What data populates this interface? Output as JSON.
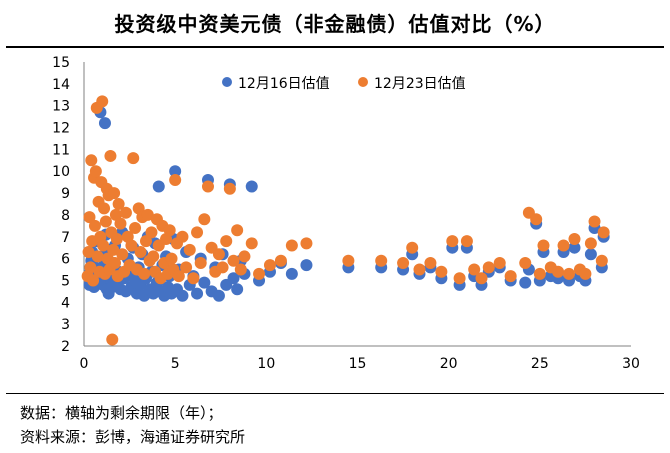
{
  "chart_data": {
    "type": "scatter",
    "title": "投资级中资美元债（非金融债）估值对比（%）",
    "xlabel": "",
    "ylabel": "",
    "xlim": [
      0,
      30
    ],
    "ylim": [
      2,
      15
    ],
    "xticks": [
      "0",
      "5",
      "10",
      "15",
      "20",
      "25",
      "30"
    ],
    "yticks": [
      "2",
      "3",
      "4",
      "5",
      "6",
      "7",
      "8",
      "9",
      "10",
      "11",
      "12",
      "13",
      "14",
      "15"
    ],
    "grid": false,
    "legend": "top",
    "series": [
      {
        "name": "12月16日估值",
        "color": "#4472C4",
        "points": [
          [
            0.3,
            4.8
          ],
          [
            0.35,
            5.4
          ],
          [
            0.4,
            5.9
          ],
          [
            0.45,
            6.3
          ],
          [
            0.5,
            5.1
          ],
          [
            0.55,
            4.7
          ],
          [
            0.6,
            5.6
          ],
          [
            0.7,
            6.8
          ],
          [
            0.75,
            5.0
          ],
          [
            0.8,
            4.9
          ],
          [
            0.85,
            5.3
          ],
          [
            0.9,
            12.7
          ],
          [
            1.0,
            6.1
          ],
          [
            1.05,
            4.8
          ],
          [
            1.1,
            5.7
          ],
          [
            1.15,
            12.2
          ],
          [
            1.2,
            7.1
          ],
          [
            1.25,
            4.6
          ],
          [
            1.3,
            5.2
          ],
          [
            1.35,
            4.4
          ],
          [
            1.4,
            6.4
          ],
          [
            1.5,
            5.0
          ],
          [
            1.55,
            4.7
          ],
          [
            1.6,
            5.8
          ],
          [
            1.7,
            6.6
          ],
          [
            1.8,
            4.9
          ],
          [
            1.9,
            5.4
          ],
          [
            2.0,
            4.6
          ],
          [
            2.1,
            7.2
          ],
          [
            2.2,
            5.1
          ],
          [
            2.3,
            4.5
          ],
          [
            2.4,
            6.0
          ],
          [
            2.5,
            5.3
          ],
          [
            2.6,
            4.7
          ],
          [
            2.7,
            6.5
          ],
          [
            2.8,
            5.0
          ],
          [
            2.9,
            4.4
          ],
          [
            3.0,
            5.6
          ],
          [
            3.1,
            4.8
          ],
          [
            3.2,
            6.2
          ],
          [
            3.3,
            4.3
          ],
          [
            3.4,
            5.1
          ],
          [
            3.5,
            7.0
          ],
          [
            3.6,
            4.6
          ],
          [
            3.7,
            5.4
          ],
          [
            3.8,
            4.4
          ],
          [
            3.9,
            6.7
          ],
          [
            4.0,
            4.9
          ],
          [
            4.1,
            9.3
          ],
          [
            4.2,
            4.5
          ],
          [
            4.3,
            5.7
          ],
          [
            4.4,
            4.3
          ],
          [
            4.5,
            6.1
          ],
          [
            4.6,
            4.7
          ],
          [
            4.7,
            5.2
          ],
          [
            4.8,
            4.4
          ],
          [
            4.9,
            6.9
          ],
          [
            5.0,
            10.0
          ],
          [
            5.1,
            4.6
          ],
          [
            5.2,
            5.5
          ],
          [
            5.4,
            4.3
          ],
          [
            5.6,
            6.3
          ],
          [
            5.8,
            4.8
          ],
          [
            6.0,
            5.2
          ],
          [
            6.2,
            4.4
          ],
          [
            6.4,
            6.0
          ],
          [
            6.6,
            4.9
          ],
          [
            6.8,
            9.6
          ],
          [
            7.0,
            4.5
          ],
          [
            7.2,
            5.6
          ],
          [
            7.4,
            4.3
          ],
          [
            7.6,
            6.2
          ],
          [
            7.8,
            4.8
          ],
          [
            8.0,
            9.4
          ],
          [
            8.2,
            5.1
          ],
          [
            8.4,
            4.6
          ],
          [
            8.6,
            5.9
          ],
          [
            8.8,
            5.3
          ],
          [
            9.2,
            9.3
          ],
          [
            9.6,
            5.0
          ],
          [
            10.2,
            5.4
          ],
          [
            10.8,
            5.8
          ],
          [
            11.4,
            5.3
          ],
          [
            12.2,
            5.7
          ],
          [
            14.5,
            5.6
          ],
          [
            16.3,
            5.6
          ],
          [
            17.5,
            5.5
          ],
          [
            18.0,
            6.2
          ],
          [
            18.4,
            5.3
          ],
          [
            19.0,
            5.6
          ],
          [
            19.6,
            5.1
          ],
          [
            20.2,
            6.5
          ],
          [
            20.6,
            4.8
          ],
          [
            21.0,
            6.5
          ],
          [
            21.4,
            5.2
          ],
          [
            21.8,
            4.8
          ],
          [
            22.2,
            5.4
          ],
          [
            22.8,
            5.6
          ],
          [
            23.4,
            5.0
          ],
          [
            24.2,
            4.9
          ],
          [
            24.4,
            5.5
          ],
          [
            24.8,
            7.6
          ],
          [
            25.0,
            5.0
          ],
          [
            25.2,
            6.3
          ],
          [
            25.6,
            5.2
          ],
          [
            26.0,
            5.1
          ],
          [
            26.3,
            6.3
          ],
          [
            26.6,
            5.0
          ],
          [
            26.9,
            6.5
          ],
          [
            27.2,
            5.2
          ],
          [
            27.5,
            5.0
          ],
          [
            27.8,
            6.2
          ],
          [
            28.0,
            7.4
          ],
          [
            28.4,
            5.6
          ],
          [
            28.5,
            7.0
          ]
        ]
      },
      {
        "name": "12月23日估值",
        "color": "#ED7D31",
        "points": [
          [
            0.2,
            5.2
          ],
          [
            0.25,
            6.3
          ],
          [
            0.3,
            7.9
          ],
          [
            0.35,
            5.6
          ],
          [
            0.4,
            10.5
          ],
          [
            0.45,
            6.8
          ],
          [
            0.5,
            5.0
          ],
          [
            0.55,
            9.7
          ],
          [
            0.6,
            7.5
          ],
          [
            0.65,
            10.0
          ],
          [
            0.7,
            12.9
          ],
          [
            0.75,
            6.1
          ],
          [
            0.8,
            8.6
          ],
          [
            0.85,
            5.4
          ],
          [
            0.9,
            7.0
          ],
          [
            0.95,
            9.5
          ],
          [
            1.0,
            13.2
          ],
          [
            1.05,
            6.6
          ],
          [
            1.1,
            8.3
          ],
          [
            1.15,
            5.3
          ],
          [
            1.2,
            7.7
          ],
          [
            1.25,
            9.2
          ],
          [
            1.3,
            6.0
          ],
          [
            1.35,
            8.9
          ],
          [
            1.4,
            5.5
          ],
          [
            1.45,
            10.7
          ],
          [
            1.5,
            7.2
          ],
          [
            1.55,
            2.3
          ],
          [
            1.6,
            6.4
          ],
          [
            1.65,
            9.0
          ],
          [
            1.7,
            5.8
          ],
          [
            1.75,
            8.0
          ],
          [
            1.8,
            6.9
          ],
          [
            1.85,
            5.2
          ],
          [
            1.9,
            8.5
          ],
          [
            2.0,
            7.6
          ],
          [
            2.1,
            6.2
          ],
          [
            2.2,
            5.4
          ],
          [
            2.3,
            8.1
          ],
          [
            2.4,
            7.0
          ],
          [
            2.5,
            5.7
          ],
          [
            2.6,
            6.6
          ],
          [
            2.7,
            10.6
          ],
          [
            2.8,
            7.4
          ],
          [
            2.9,
            5.5
          ],
          [
            3.0,
            8.3
          ],
          [
            3.1,
            6.3
          ],
          [
            3.2,
            7.9
          ],
          [
            3.3,
            5.3
          ],
          [
            3.4,
            6.8
          ],
          [
            3.5,
            8.0
          ],
          [
            3.6,
            5.9
          ],
          [
            3.7,
            7.2
          ],
          [
            3.8,
            6.1
          ],
          [
            3.9,
            5.4
          ],
          [
            4.0,
            7.8
          ],
          [
            4.1,
            6.6
          ],
          [
            4.2,
            5.1
          ],
          [
            4.3,
            7.5
          ],
          [
            4.4,
            5.8
          ],
          [
            4.5,
            6.9
          ],
          [
            4.6,
            5.3
          ],
          [
            4.7,
            7.3
          ],
          [
            4.8,
            6.0
          ],
          [
            4.9,
            5.5
          ],
          [
            5.0,
            9.6
          ],
          [
            5.1,
            6.7
          ],
          [
            5.2,
            5.2
          ],
          [
            5.4,
            7.0
          ],
          [
            5.6,
            5.6
          ],
          [
            5.8,
            6.4
          ],
          [
            6.0,
            5.1
          ],
          [
            6.2,
            7.2
          ],
          [
            6.4,
            5.8
          ],
          [
            6.6,
            7.8
          ],
          [
            6.8,
            9.3
          ],
          [
            7.0,
            6.5
          ],
          [
            7.2,
            5.4
          ],
          [
            7.4,
            6.2
          ],
          [
            7.6,
            5.6
          ],
          [
            7.8,
            6.8
          ],
          [
            8.0,
            9.2
          ],
          [
            8.2,
            5.9
          ],
          [
            8.4,
            7.3
          ],
          [
            8.6,
            5.5
          ],
          [
            8.8,
            6.1
          ],
          [
            9.2,
            6.7
          ],
          [
            9.6,
            5.3
          ],
          [
            10.2,
            5.7
          ],
          [
            10.8,
            5.9
          ],
          [
            11.4,
            6.6
          ],
          [
            12.2,
            6.7
          ],
          [
            14.5,
            5.9
          ],
          [
            16.3,
            5.9
          ],
          [
            17.5,
            5.8
          ],
          [
            18.0,
            6.5
          ],
          [
            18.4,
            5.5
          ],
          [
            19.0,
            5.8
          ],
          [
            19.6,
            5.4
          ],
          [
            20.2,
            6.8
          ],
          [
            20.6,
            5.1
          ],
          [
            21.0,
            6.8
          ],
          [
            21.4,
            5.5
          ],
          [
            21.8,
            5.1
          ],
          [
            22.2,
            5.6
          ],
          [
            22.8,
            5.8
          ],
          [
            23.4,
            5.2
          ],
          [
            24.2,
            5.8
          ],
          [
            24.4,
            8.1
          ],
          [
            24.8,
            7.8
          ],
          [
            25.0,
            5.3
          ],
          [
            25.2,
            6.6
          ],
          [
            25.6,
            5.6
          ],
          [
            26.0,
            5.4
          ],
          [
            26.3,
            6.6
          ],
          [
            26.6,
            5.3
          ],
          [
            26.9,
            6.9
          ],
          [
            27.2,
            5.5
          ],
          [
            27.5,
            5.3
          ],
          [
            27.8,
            6.7
          ],
          [
            28.0,
            7.7
          ],
          [
            28.4,
            5.9
          ],
          [
            28.5,
            7.2
          ]
        ]
      }
    ]
  },
  "notes": {
    "line1": "数据：横轴为剩余期限（年）；",
    "line2": "资料来源：彭博，海通证券研究所"
  }
}
